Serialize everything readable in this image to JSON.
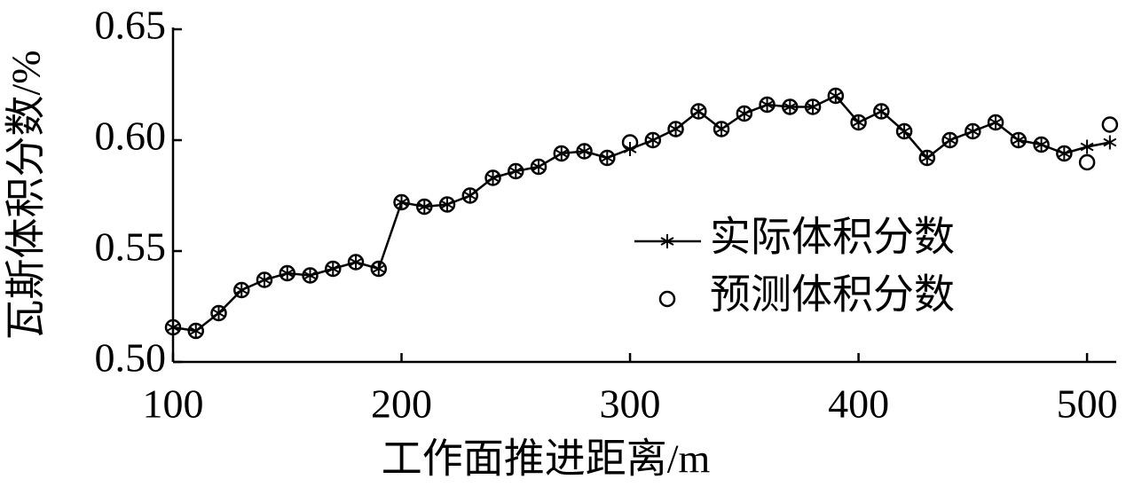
{
  "chart_data": {
    "type": "line",
    "x_label": "工作面推进距离/m",
    "y_label": "瓦斯体积分数/%",
    "x": [
      100,
      110,
      120,
      130,
      140,
      150,
      160,
      170,
      180,
      190,
      200,
      210,
      220,
      230,
      240,
      250,
      260,
      270,
      280,
      290,
      300,
      310,
      320,
      330,
      340,
      350,
      360,
      370,
      380,
      390,
      400,
      410,
      420,
      430,
      440,
      450,
      460,
      470,
      480,
      490,
      500,
      510
    ],
    "series": [
      {
        "name": "实际体积分数",
        "color": "#000000",
        "marker": "star",
        "line": true,
        "values": [
          0.5156,
          0.514,
          0.522,
          0.5324,
          0.537,
          0.54,
          0.539,
          0.542,
          0.545,
          0.542,
          0.572,
          0.57,
          0.571,
          0.575,
          0.583,
          0.586,
          0.588,
          0.594,
          0.595,
          0.592,
          0.596,
          0.6,
          0.605,
          0.613,
          0.605,
          0.612,
          0.616,
          0.615,
          0.615,
          0.62,
          0.608,
          0.613,
          0.604,
          0.592,
          0.6,
          0.604,
          0.608,
          0.6,
          0.598,
          0.594,
          0.597,
          0.599
        ]
      },
      {
        "name": "预测体积分数",
        "color": "#000000",
        "marker": "circle",
        "line": false,
        "values": [
          0.5156,
          0.514,
          0.522,
          0.5324,
          0.537,
          0.54,
          0.539,
          0.542,
          0.545,
          0.542,
          0.572,
          0.57,
          0.571,
          0.575,
          0.583,
          0.586,
          0.588,
          0.594,
          0.595,
          0.592,
          0.599,
          0.6,
          0.605,
          0.613,
          0.605,
          0.612,
          0.616,
          0.615,
          0.615,
          0.62,
          0.608,
          0.613,
          0.604,
          0.592,
          0.6,
          0.604,
          0.608,
          0.6,
          0.598,
          0.594,
          0.59,
          0.607
        ]
      }
    ],
    "xlim": [
      100,
      512
    ],
    "xticks": [
      100,
      200,
      300,
      400,
      500
    ],
    "ylim": [
      0.5,
      0.65
    ],
    "yticks": [
      {
        "value": 0.5,
        "label": "0.50"
      },
      0.55,
      {
        "value": 0.6,
        "label": "0.60"
      },
      0.65
    ],
    "grid": false,
    "legend": "right"
  }
}
